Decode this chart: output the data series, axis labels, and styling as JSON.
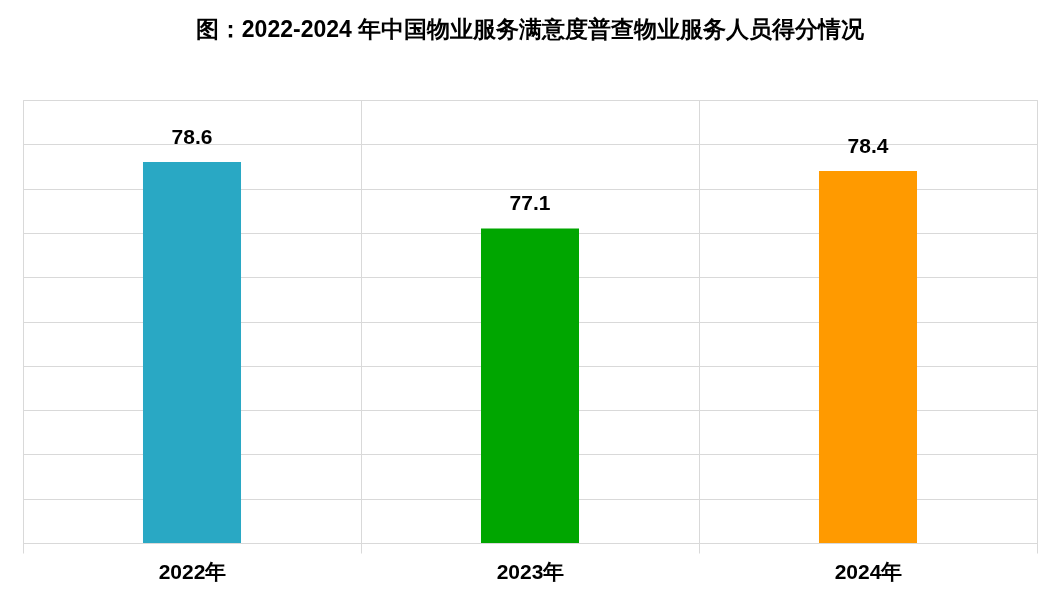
{
  "chart_data": {
    "type": "bar",
    "title": "图：2022-2024 年中国物业服务满意度普查物业服务人员得分情况",
    "categories": [
      "2022年",
      "2023年",
      "2024年"
    ],
    "values": [
      78.6,
      77.1,
      78.4
    ],
    "colors": [
      "#29a8c4",
      "#00a600",
      "#ff9a00"
    ],
    "ylim": [
      70,
      80
    ],
    "yticks": [
      70,
      71,
      72,
      73,
      74,
      75,
      76,
      77,
      78,
      79,
      80
    ],
    "grid": true,
    "tick_labels": "x",
    "data_labels": true
  }
}
